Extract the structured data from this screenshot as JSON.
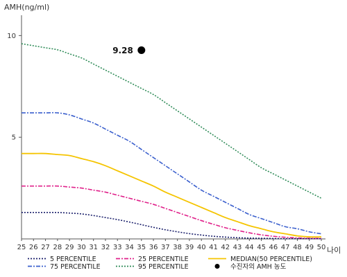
{
  "chart_data": {
    "type": "line",
    "ylabel": "AMH(ng/ml)",
    "xlabel": "나이",
    "xlim": [
      25,
      50
    ],
    "ylim": [
      0,
      11
    ],
    "y_ticks": [
      5,
      10
    ],
    "x": [
      25,
      26,
      27,
      28,
      29,
      30,
      31,
      32,
      33,
      34,
      35,
      36,
      37,
      38,
      39,
      40,
      41,
      42,
      43,
      44,
      45,
      46,
      47,
      48,
      49,
      50
    ],
    "series": [
      {
        "name": "95 PERCENTILE",
        "color": "#2e8b57",
        "dash": "2,2",
        "values": [
          9.6,
          9.5,
          9.4,
          9.3,
          9.1,
          8.9,
          8.6,
          8.3,
          8.0,
          7.7,
          7.4,
          7.1,
          6.7,
          6.3,
          5.9,
          5.5,
          5.1,
          4.7,
          4.3,
          3.9,
          3.5,
          3.2,
          2.9,
          2.6,
          2.3,
          2.0
        ]
      },
      {
        "name": "75 PERCENTILE",
        "color": "#3a5fcd",
        "dash": "6,2,2,2",
        "values": [
          6.2,
          6.2,
          6.2,
          6.2,
          6.1,
          5.9,
          5.7,
          5.4,
          5.1,
          4.8,
          4.4,
          4.0,
          3.6,
          3.2,
          2.8,
          2.4,
          2.1,
          1.8,
          1.5,
          1.2,
          1.0,
          0.8,
          0.6,
          0.5,
          0.35,
          0.25
        ]
      },
      {
        "name": "MEDIAN(50 PERCENTILE)",
        "color": "#f5c400",
        "dash": "",
        "values": [
          4.2,
          4.2,
          4.2,
          4.15,
          4.1,
          3.95,
          3.8,
          3.6,
          3.35,
          3.1,
          2.85,
          2.6,
          2.3,
          2.05,
          1.8,
          1.55,
          1.3,
          1.05,
          0.85,
          0.65,
          0.5,
          0.35,
          0.25,
          0.15,
          0.1,
          0.1
        ]
      },
      {
        "name": "25 PERCENTILE",
        "color": "#e0208a",
        "dash": "6,2,2,2",
        "values": [
          2.6,
          2.6,
          2.6,
          2.6,
          2.55,
          2.5,
          2.4,
          2.3,
          2.15,
          2.0,
          1.85,
          1.7,
          1.5,
          1.3,
          1.1,
          0.9,
          0.72,
          0.55,
          0.42,
          0.3,
          0.2,
          0.13,
          0.08,
          0.05,
          0.03,
          0.02
        ]
      },
      {
        "name": "5 PERCENTILE",
        "color": "#1a1f6b",
        "dash": "2,2",
        "values": [
          1.3,
          1.3,
          1.3,
          1.3,
          1.27,
          1.23,
          1.15,
          1.05,
          0.95,
          0.83,
          0.7,
          0.57,
          0.45,
          0.35,
          0.26,
          0.19,
          0.13,
          0.09,
          0.06,
          0.04,
          0.03,
          0.02,
          0.01,
          0.01,
          0.01,
          0.01
        ]
      }
    ],
    "highlight_point": {
      "name": "수진자의 AMH 농도",
      "x": 35,
      "y": 9.28,
      "label": "9.28",
      "color": "#000000"
    },
    "legend": [
      {
        "label": "5 PERCENTILE",
        "series": 4
      },
      {
        "label": "25 PERCENTILE",
        "series": 3
      },
      {
        "label": "MEDIAN(50 PERCENTILE)",
        "series": 2
      },
      {
        "label": "75 PERCENTILE",
        "series": 1
      },
      {
        "label": "95 PERCENTILE",
        "series": 0
      },
      {
        "label": "수진자의 AMH 농도",
        "series": -1
      }
    ]
  }
}
